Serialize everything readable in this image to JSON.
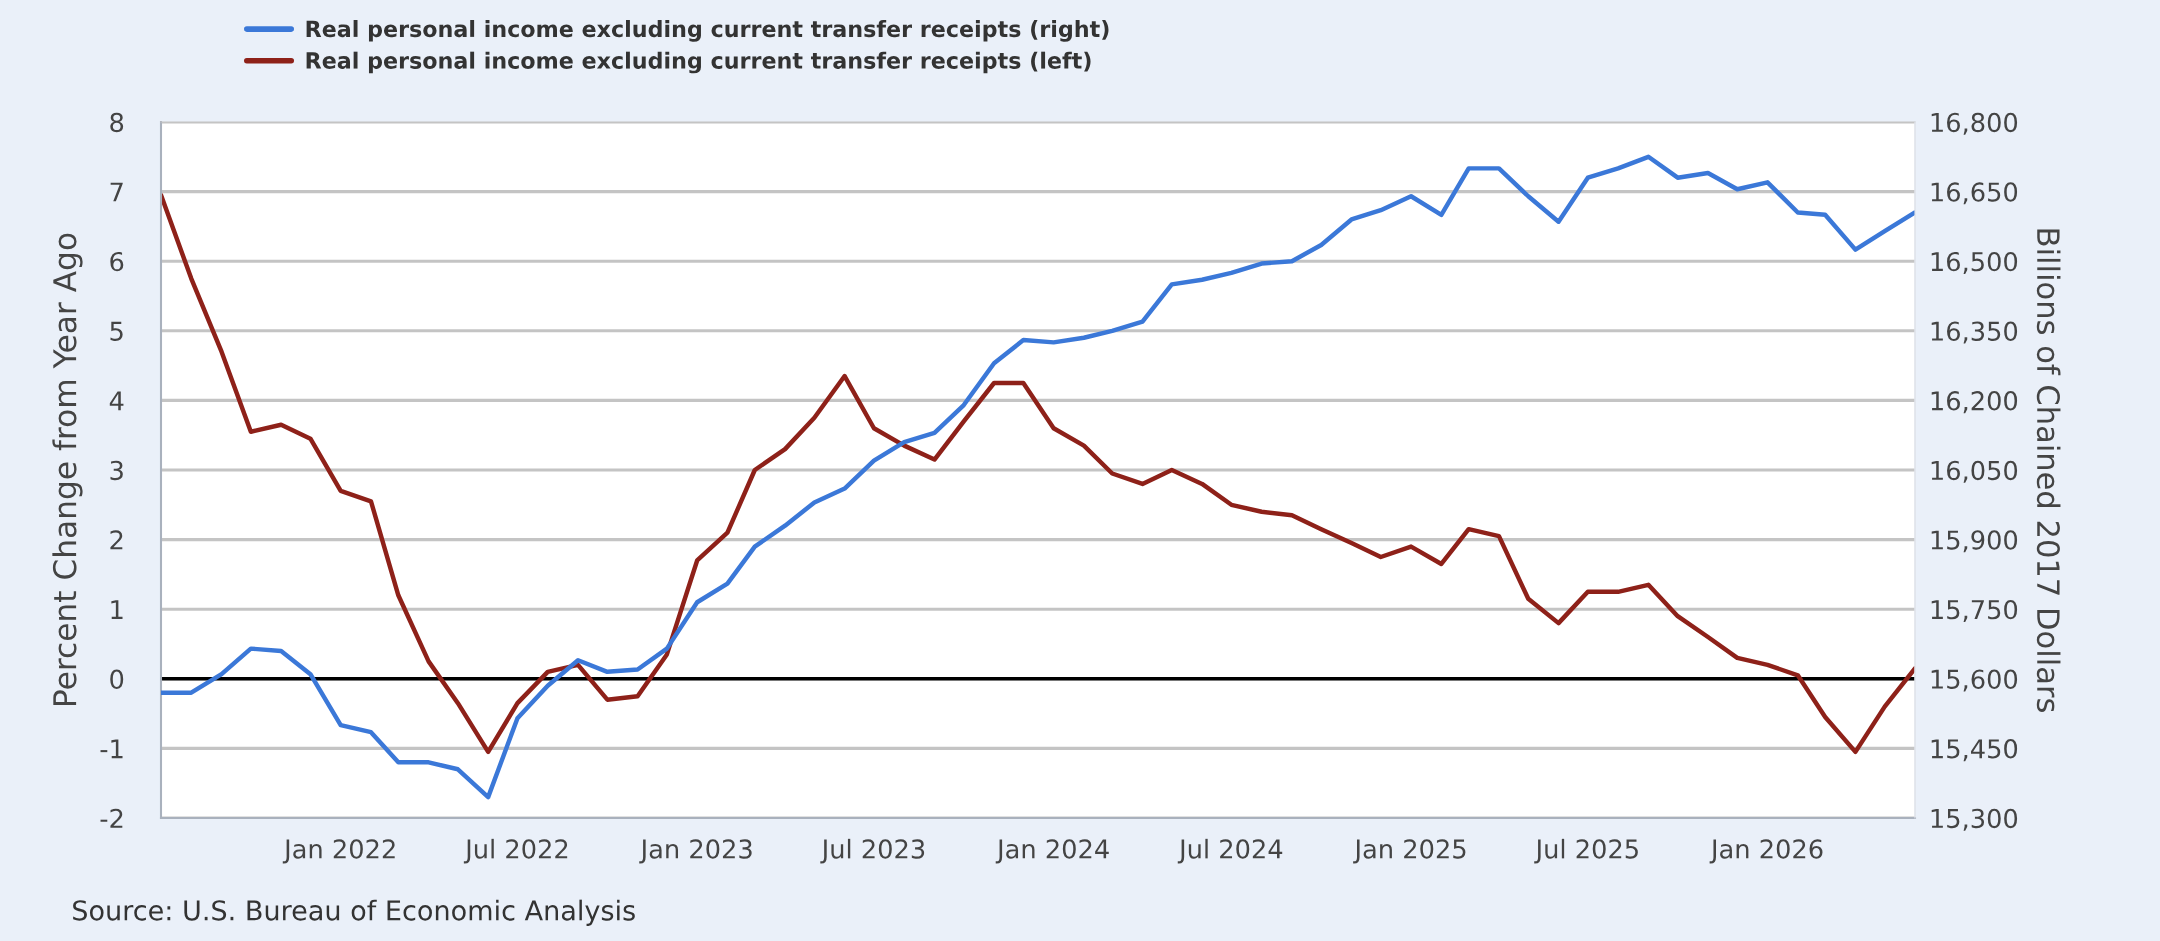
{
  "chart_data": {
    "type": "line",
    "x": [
      "2021-07",
      "2021-08",
      "2021-09",
      "2021-10",
      "2021-11",
      "2021-12",
      "2022-01",
      "2022-02",
      "2022-03",
      "2022-04",
      "2022-05",
      "2022-06",
      "2022-07",
      "2022-08",
      "2022-09",
      "2022-10",
      "2022-11",
      "2022-12",
      "2023-01",
      "2023-02",
      "2023-03",
      "2023-04",
      "2023-05",
      "2023-06",
      "2023-07",
      "2023-08",
      "2023-09",
      "2023-10",
      "2023-11",
      "2023-12",
      "2024-01",
      "2024-02",
      "2024-03",
      "2024-04",
      "2024-05",
      "2024-06",
      "2024-07",
      "2024-08",
      "2024-09",
      "2024-10",
      "2024-11",
      "2024-12",
      "2025-01",
      "2025-02",
      "2025-03",
      "2025-04",
      "2025-05",
      "2025-06",
      "2025-07",
      "2025-08",
      "2025-09",
      "2025-10",
      "2025-11",
      "2025-12",
      "2026-01",
      "2026-02",
      "2026-03",
      "2026-04",
      "2026-05",
      "2026-06"
    ],
    "series": [
      {
        "name": "Real personal income excluding current transfer receipts (right)",
        "color": "#3b78d8",
        "axis": "y2",
        "values": [
          15570,
          15570,
          15610,
          15665,
          15660,
          15610,
          15500,
          15485,
          15420,
          15420,
          15405,
          15345,
          15515,
          15585,
          15640,
          15615,
          15620,
          15665,
          15765,
          15805,
          15885,
          15930,
          15980,
          16010,
          16070,
          16110,
          16130,
          16190,
          16280,
          16330,
          16325,
          16335,
          16350,
          16370,
          16450,
          16460,
          16475,
          16495,
          16500,
          16535,
          16590,
          16610,
          16640,
          16600,
          16700,
          16700,
          16640,
          16585,
          16680,
          16700,
          16725,
          16680,
          16690,
          16655,
          16670,
          16605,
          16600,
          16525,
          16565,
          16605
        ]
      },
      {
        "name": "Real personal income excluding current transfer receipts (left)",
        "color": "#8e2119",
        "values": [
          6.95,
          5.75,
          4.7,
          3.55,
          3.65,
          3.45,
          2.7,
          2.55,
          1.2,
          0.25,
          -0.35,
          -1.05,
          -0.35,
          0.1,
          0.2,
          -0.3,
          -0.25,
          0.35,
          1.7,
          2.1,
          3.0,
          3.3,
          3.75,
          4.35,
          3.6,
          3.35,
          3.15,
          3.7,
          4.25,
          4.25,
          3.6,
          3.35,
          2.95,
          2.8,
          3.0,
          2.8,
          2.5,
          2.4,
          2.35,
          2.15,
          1.95,
          1.75,
          1.9,
          1.65,
          2.15,
          2.05,
          1.15,
          0.8,
          1.25,
          1.25,
          1.35,
          0.9,
          0.6,
          0.3,
          0.2,
          0.05,
          -0.55,
          -1.05,
          -0.4,
          0.15
        ]
      }
    ],
    "xlim": [
      "2021-07",
      "2026-06"
    ],
    "xticks": [
      {
        "value": "2022-01",
        "label": "Jan 2022"
      },
      {
        "value": "2022-07",
        "label": "Jul 2022"
      },
      {
        "value": "2023-01",
        "label": "Jan 2023"
      },
      {
        "value": "2023-07",
        "label": "Jul 2023"
      },
      {
        "value": "2024-01",
        "label": "Jan 2024"
      },
      {
        "value": "2024-07",
        "label": "Jul 2024"
      },
      {
        "value": "2025-01",
        "label": "Jan 2025"
      },
      {
        "value": "2025-07",
        "label": "Jul 2025"
      },
      {
        "value": "2026-01",
        "label": "Jan 2026"
      }
    ],
    "ylim": [
      -2,
      8
    ],
    "yticks": [
      -2,
      -1,
      0,
      1,
      2,
      3,
      4,
      5,
      6,
      7,
      8
    ],
    "y2lim": [
      15300,
      16800
    ],
    "y2ticks": [
      {
        "value": 15300,
        "label": "15,300"
      },
      {
        "value": 15450,
        "label": "15,450"
      },
      {
        "value": 15600,
        "label": "15,600"
      },
      {
        "value": 15750,
        "label": "15,750"
      },
      {
        "value": 15900,
        "label": "15,900"
      },
      {
        "value": 16050,
        "label": "16,050"
      },
      {
        "value": 16200,
        "label": "16,200"
      },
      {
        "value": 16350,
        "label": "16,350"
      },
      {
        "value": 16500,
        "label": "16,500"
      },
      {
        "value": 16650,
        "label": "16,650"
      },
      {
        "value": 16800,
        "label": "16,800"
      }
    ],
    "ylabel": "Percent Change from Year Ago",
    "y2label": "Billions of Chained 2017 Dollars",
    "ref_lines": [
      {
        "axis": "y",
        "value": 0,
        "color": "#000000"
      }
    ],
    "grid": "y",
    "legend": "top left",
    "line_style": "solid",
    "annotations": [
      "Source: U.S. Bureau of Economic Analysis"
    ]
  }
}
